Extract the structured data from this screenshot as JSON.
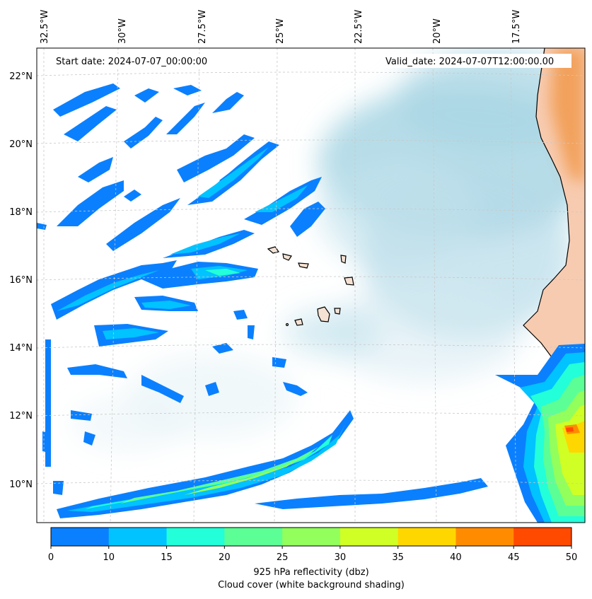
{
  "map": {
    "start_date": "Start date: 2024-07-07_00:00:00",
    "valid_date": "Valid_date: 2024-07-07T12:00:00.00",
    "lon_labels": [
      "32.5°W",
      "30°W",
      "27.5°W",
      "25°W",
      "22.5°W",
      "20°W",
      "17.5°W"
    ],
    "lat_labels": [
      "22°N",
      "20°N",
      "18°N",
      "16°N",
      "14°N",
      "12°N",
      "10°N"
    ],
    "colorbar": {
      "ticks": [
        "0",
        "10",
        "15",
        "20",
        "25",
        "30",
        "35",
        "40",
        "45",
        "50"
      ],
      "colors": [
        "#0a80ff",
        "#00c3ff",
        "#23ffd8",
        "#5cff96",
        "#93ff5c",
        "#d0ff26",
        "#ffd700",
        "#ff8c00",
        "#ff4a00"
      ],
      "label_line1": "925 hPa reflectivity (dbz)",
      "label_line2": "Cloud cover (white background shading)"
    },
    "colors": {
      "cloud_shading": "#a9d6e4",
      "land_sahara": "#f2a15c",
      "land_south": "#f7cbb0",
      "coast": "#000000",
      "grid": "#c8c8c8"
    }
  }
}
